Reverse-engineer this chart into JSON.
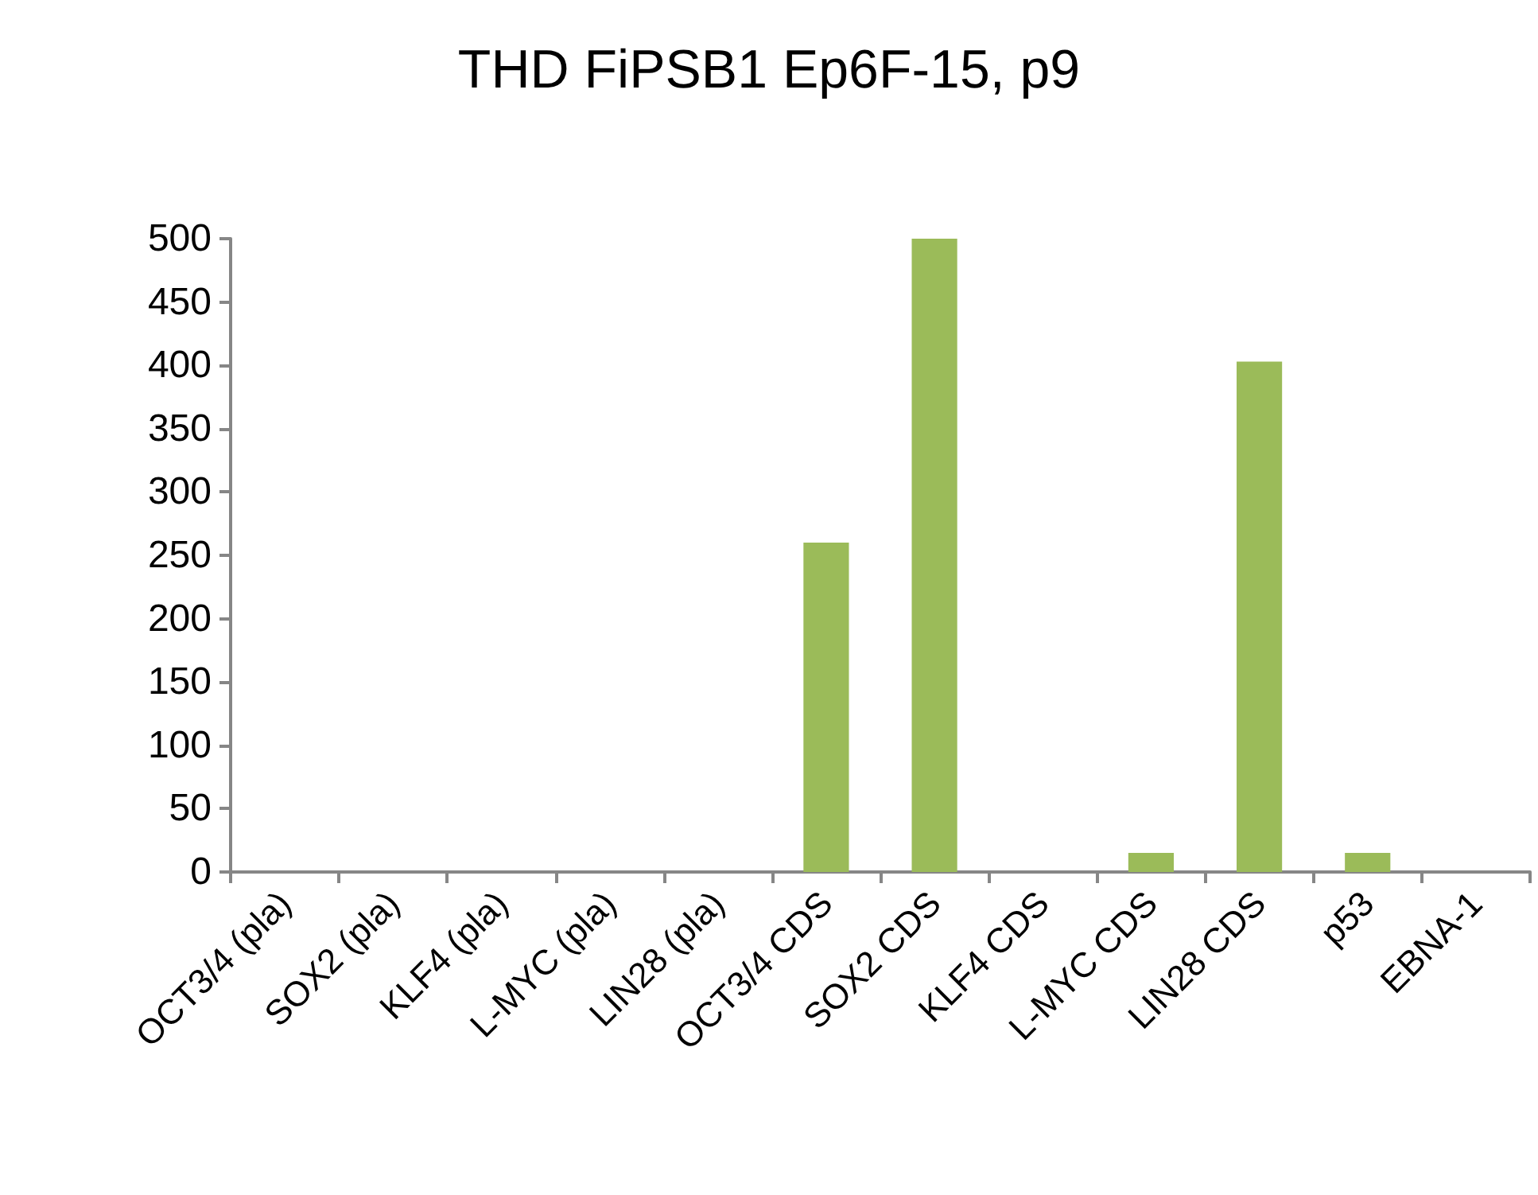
{
  "chart_data": {
    "type": "bar",
    "title": "THD FiPSB1 Ep6F-15, p9",
    "categories": [
      "OCT3/4 (pla)",
      "SOX2 (pla)",
      "KLF4 (pla)",
      "L-MYC (pla)",
      "LIN28 (pla)",
      "OCT3/4 CDS",
      "SOX2 CDS",
      "KLF4 CDS",
      "L-MYC CDS",
      "LIN28 CDS",
      "p53",
      "EBNA-1"
    ],
    "values": [
      0,
      0,
      0,
      0,
      0,
      260,
      500,
      0,
      15,
      403,
      15,
      0
    ],
    "color": "#9bbb59",
    "ylim": [
      0,
      500
    ],
    "yticks": [
      0,
      50,
      100,
      150,
      200,
      250,
      300,
      350,
      400,
      450,
      500
    ],
    "grid": false
  }
}
